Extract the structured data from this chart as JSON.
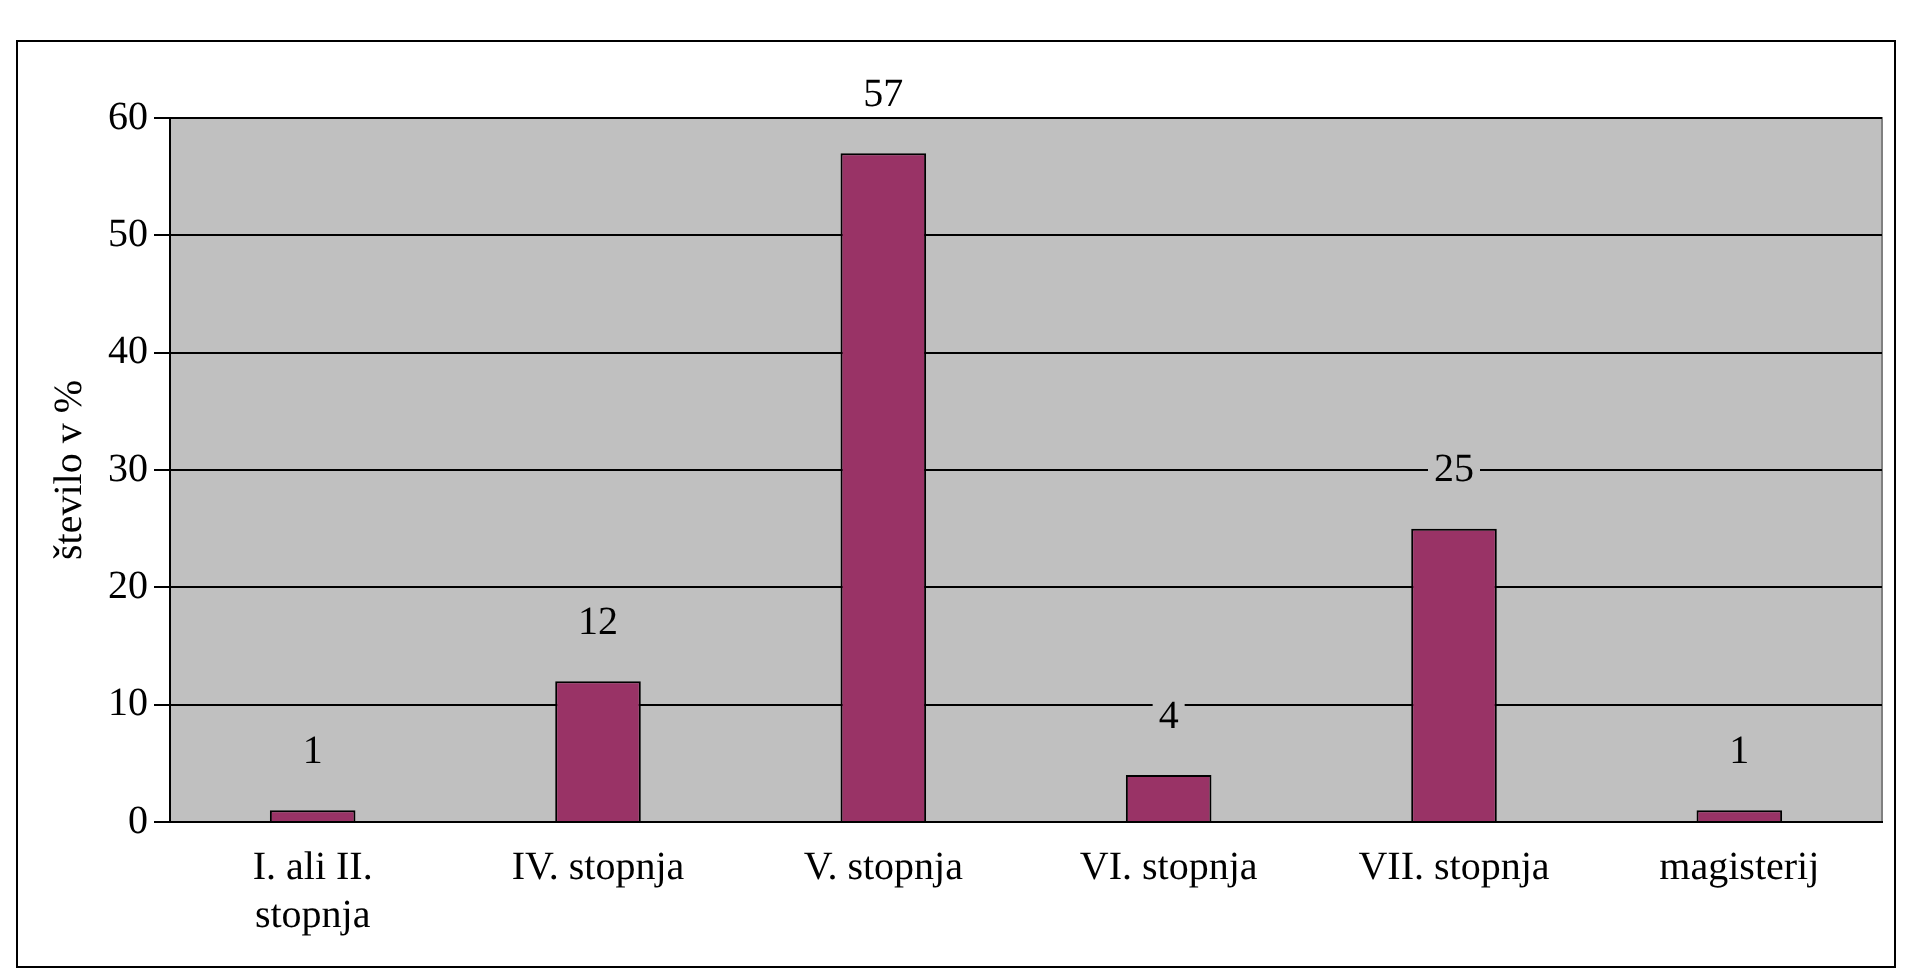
{
  "chart_data": {
    "type": "bar",
    "ylabel": "število v %",
    "categories": [
      "I. ali II. stopnja",
      "IV. stopnja",
      "V. stopnja",
      "VI. stopnja",
      "VII. stopnja",
      "magisterij"
    ],
    "values": [
      1,
      12,
      57,
      4,
      25,
      1
    ],
    "color": "#993366",
    "ylim": [
      0,
      60
    ],
    "yticks": [
      0,
      10,
      20,
      30,
      40,
      50,
      60
    ],
    "grid": "y",
    "data_labels": true
  }
}
